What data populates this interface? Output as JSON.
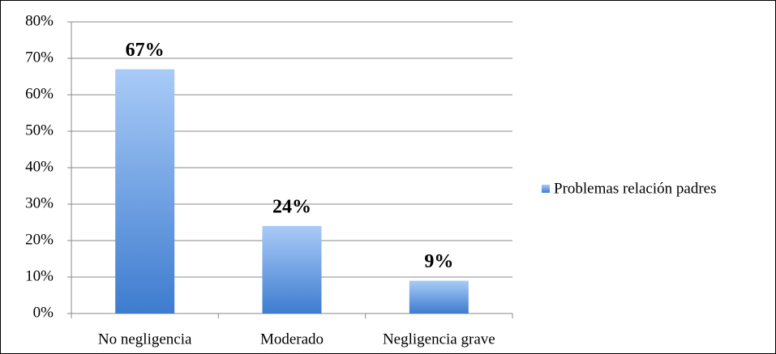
{
  "chart_data": {
    "type": "bar",
    "categories": [
      "No negligencia",
      "Moderado",
      "Negligencia grave"
    ],
    "series": [
      {
        "name": "Problemas relación padres",
        "color": "#3e7ccf",
        "values": [
          67,
          24,
          9
        ],
        "value_labels": [
          "67%",
          "24%",
          "9%"
        ]
      }
    ],
    "ylim": [
      0,
      80
    ],
    "yticks": [
      {
        "value": 0,
        "label": "0%"
      },
      {
        "value": 10,
        "label": "10%"
      },
      {
        "value": 20,
        "label": "20%"
      },
      {
        "value": 30,
        "label": "30%"
      },
      {
        "value": 40,
        "label": "40%"
      },
      {
        "value": 50,
        "label": "50%"
      },
      {
        "value": 60,
        "label": "60%"
      },
      {
        "value": 70,
        "label": "70%"
      },
      {
        "value": 80,
        "label": "80%"
      }
    ],
    "grid": true,
    "legend": "right"
  }
}
